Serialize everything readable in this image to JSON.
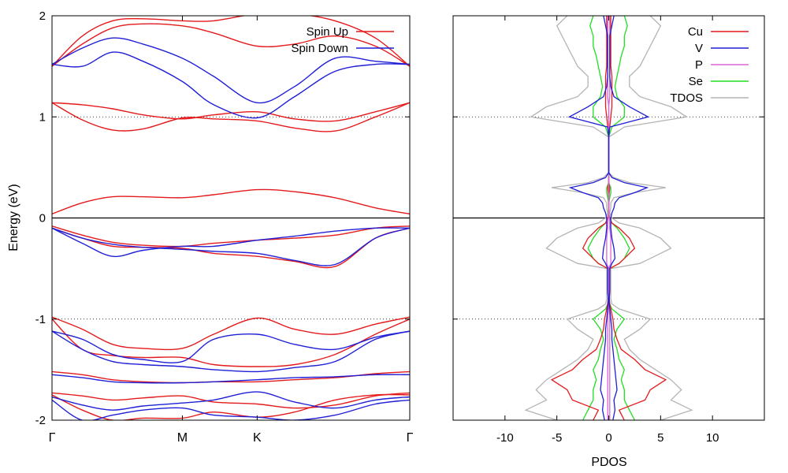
{
  "chart_data": [
    {
      "type": "line",
      "title": "",
      "ylabel": "Energy (eV)",
      "xlabel": "",
      "ylim": [
        -2,
        2
      ],
      "xlim": [
        0,
        3.54
      ],
      "yticks": [
        -2,
        -1,
        0,
        1,
        2
      ],
      "ytick_labels": [
        "-2",
        "-1",
        "0",
        "1",
        "2"
      ],
      "kpoints": [
        {
          "label": "Γ",
          "x": 0
        },
        {
          "label": "M",
          "x": 1.29
        },
        {
          "label": "K",
          "x": 2.03
        },
        {
          "label": "Γ",
          "x": 3.54
        }
      ],
      "reference_lines": [
        {
          "y": 0,
          "style": "solid"
        },
        {
          "y": 1,
          "style": "dotted"
        },
        {
          "y": -1,
          "style": "dotted"
        }
      ],
      "legend": {
        "placement": "top-right"
      },
      "series": [
        {
          "name": "Spin Up",
          "color": "#e41a1c",
          "bands": [
            {
              "x": [
                0,
                0.3,
                0.6,
                0.9,
                1.29,
                1.6,
                2.03,
                2.4,
                2.8,
                3.2,
                3.54
              ],
              "y": [
                1.5,
                1.72,
                1.88,
                1.92,
                1.9,
                1.83,
                1.7,
                1.72,
                1.8,
                1.7,
                1.5
              ]
            },
            {
              "x": [
                0,
                0.3,
                0.6,
                0.9,
                1.29,
                1.6,
                2.03,
                2.4,
                2.8,
                3.2,
                3.54
              ],
              "y": [
                1.5,
                1.8,
                1.95,
                1.97,
                1.95,
                1.95,
                2.02,
                2.02,
                1.95,
                1.78,
                1.5
              ]
            },
            {
              "x": [
                0,
                0.3,
                0.6,
                0.9,
                1.29,
                1.6,
                2.03,
                2.4,
                2.8,
                3.2,
                3.54
              ],
              "y": [
                1.14,
                1.12,
                1.08,
                1.02,
                0.98,
                1.02,
                1.05,
                0.98,
                0.96,
                1.05,
                1.14
              ]
            },
            {
              "x": [
                0,
                0.3,
                0.6,
                0.9,
                1.29,
                1.6,
                2.03,
                2.4,
                2.8,
                3.2,
                3.54
              ],
              "y": [
                1.14,
                0.97,
                0.87,
                0.88,
                0.99,
                0.98,
                0.96,
                0.89,
                0.86,
                1.0,
                1.14
              ]
            },
            {
              "x": [
                0,
                0.3,
                0.6,
                0.9,
                1.29,
                1.6,
                2.03,
                2.4,
                2.8,
                3.2,
                3.54
              ],
              "y": [
                0.04,
                0.15,
                0.21,
                0.21,
                0.2,
                0.23,
                0.28,
                0.26,
                0.2,
                0.1,
                0.04
              ]
            },
            {
              "x": [
                0,
                0.3,
                0.6,
                0.9,
                1.29,
                1.6,
                2.03,
                2.4,
                2.8,
                3.2,
                3.54
              ],
              "y": [
                -0.08,
                -0.17,
                -0.24,
                -0.27,
                -0.28,
                -0.25,
                -0.22,
                -0.2,
                -0.17,
                -0.1,
                -0.08
              ]
            },
            {
              "x": [
                0,
                0.3,
                0.6,
                0.9,
                1.29,
                1.6,
                2.03,
                2.4,
                2.8,
                3.2,
                3.54
              ],
              "y": [
                -0.1,
                -0.2,
                -0.28,
                -0.29,
                -0.3,
                -0.35,
                -0.38,
                -0.43,
                -0.48,
                -0.2,
                -0.1
              ]
            },
            {
              "x": [
                0,
                0.3,
                0.6,
                0.9,
                1.29,
                1.6,
                2.03,
                2.4,
                2.8,
                3.2,
                3.54
              ],
              "y": [
                -0.98,
                -1.1,
                -1.25,
                -1.29,
                -1.29,
                -1.15,
                -0.99,
                -1.1,
                -1.15,
                -1.05,
                -0.98
              ]
            },
            {
              "x": [
                0,
                0.3,
                0.6,
                0.9,
                1.29,
                1.6,
                2.03,
                2.4,
                2.8,
                3.2,
                3.54
              ],
              "y": [
                -1.0,
                -1.3,
                -1.36,
                -1.38,
                -1.38,
                -1.45,
                -1.47,
                -1.45,
                -1.35,
                -1.15,
                -1.0
              ]
            },
            {
              "x": [
                0,
                0.3,
                0.6,
                0.9,
                1.29,
                1.6,
                2.03,
                2.4,
                2.8,
                3.2,
                3.54
              ],
              "y": [
                -1.52,
                -1.55,
                -1.6,
                -1.62,
                -1.63,
                -1.62,
                -1.62,
                -1.6,
                -1.58,
                -1.54,
                -1.52
              ]
            },
            {
              "x": [
                0,
                0.3,
                0.6,
                0.9,
                1.29,
                1.6,
                2.03,
                2.4,
                2.8,
                3.2,
                3.54
              ],
              "y": [
                -1.73,
                -1.76,
                -1.8,
                -1.78,
                -1.76,
                -1.82,
                -1.84,
                -1.88,
                -1.85,
                -1.76,
                -1.73
              ]
            },
            {
              "x": [
                0,
                0.3,
                0.6,
                0.9,
                1.29,
                1.6,
                2.03,
                2.4,
                2.8,
                3.2,
                3.54
              ],
              "y": [
                -1.75,
                -1.9,
                -2.0,
                -1.98,
                -1.98,
                -1.92,
                -1.97,
                -1.92,
                -1.8,
                -1.75,
                -1.75
              ]
            }
          ]
        },
        {
          "name": "Spin Down",
          "color": "#1f1fd6",
          "bands": [
            {
              "x": [
                0,
                0.3,
                0.6,
                0.9,
                1.29,
                1.6,
                2.03,
                2.4,
                2.8,
                3.2,
                3.54
              ],
              "y": [
                1.52,
                1.68,
                1.78,
                1.72,
                1.58,
                1.4,
                1.14,
                1.3,
                1.58,
                1.55,
                1.52
              ]
            },
            {
              "x": [
                0,
                0.3,
                0.6,
                0.9,
                1.29,
                1.6,
                2.03,
                2.4,
                2.8,
                3.2,
                3.54
              ],
              "y": [
                1.52,
                1.5,
                1.64,
                1.55,
                1.35,
                1.12,
                0.99,
                1.2,
                1.45,
                1.52,
                1.52
              ]
            },
            {
              "x": [
                0,
                0.3,
                0.6,
                0.9,
                1.29,
                1.6,
                2.03,
                2.4,
                2.8,
                3.2,
                3.54
              ],
              "y": [
                -0.1,
                -0.25,
                -0.38,
                -0.32,
                -0.28,
                -0.28,
                -0.22,
                -0.18,
                -0.13,
                -0.1,
                -0.1
              ]
            },
            {
              "x": [
                0,
                0.3,
                0.6,
                0.9,
                1.29,
                1.6,
                2.03,
                2.4,
                2.8,
                3.2,
                3.54
              ],
              "y": [
                -0.1,
                -0.2,
                -0.26,
                -0.29,
                -0.31,
                -0.33,
                -0.35,
                -0.42,
                -0.46,
                -0.2,
                -0.1
              ]
            },
            {
              "x": [
                0,
                0.3,
                0.6,
                0.9,
                1.29,
                1.6,
                2.03,
                2.4,
                2.8,
                3.2,
                3.54
              ],
              "y": [
                -1.12,
                -1.2,
                -1.35,
                -1.4,
                -1.42,
                -1.2,
                -1.15,
                -1.25,
                -1.3,
                -1.18,
                -1.12
              ]
            },
            {
              "x": [
                0,
                0.3,
                0.6,
                0.9,
                1.29,
                1.6,
                2.03,
                2.4,
                2.8,
                3.2,
                3.54
              ],
              "y": [
                -1.12,
                -1.3,
                -1.42,
                -1.45,
                -1.47,
                -1.5,
                -1.52,
                -1.48,
                -1.42,
                -1.2,
                -1.12
              ]
            },
            {
              "x": [
                0,
                0.3,
                0.6,
                0.9,
                1.29,
                1.6,
                2.03,
                2.4,
                2.8,
                3.2,
                3.54
              ],
              "y": [
                -1.55,
                -1.58,
                -1.62,
                -1.63,
                -1.63,
                -1.62,
                -1.6,
                -1.58,
                -1.57,
                -1.55,
                -1.55
              ]
            },
            {
              "x": [
                0,
                0.3,
                0.6,
                0.9,
                1.29,
                1.6,
                2.03,
                2.4,
                2.8,
                3.2,
                3.54
              ],
              "y": [
                -1.77,
                -1.85,
                -1.9,
                -1.86,
                -1.83,
                -1.8,
                -1.72,
                -1.82,
                -1.88,
                -1.8,
                -1.77
              ]
            },
            {
              "x": [
                0,
                0.3,
                0.6,
                0.9,
                1.29,
                1.6,
                2.03,
                2.4,
                2.8,
                3.2,
                3.54
              ],
              "y": [
                -1.8,
                -2.0,
                -1.95,
                -1.9,
                -1.88,
                -1.95,
                -1.97,
                -2.0,
                -1.95,
                -1.84,
                -1.8
              ]
            }
          ]
        }
      ]
    },
    {
      "type": "line",
      "title": "",
      "xlabel": "PDOS",
      "ylabel": "",
      "xlim": [
        -15,
        15
      ],
      "ylim": [
        -2,
        2
      ],
      "xticks": [
        -10,
        -5,
        0,
        5,
        10
      ],
      "xtick_labels": [
        "-10",
        "-5",
        "0",
        "5",
        "10"
      ],
      "yticks": [
        -2,
        -1,
        0,
        1,
        2
      ],
      "reference_lines": [
        {
          "y": 0,
          "style": "solid"
        },
        {
          "y": 1,
          "style": "dotted"
        },
        {
          "y": -1,
          "style": "dotted"
        }
      ],
      "legend": {
        "placement": "top-right"
      },
      "energy": [
        -2.0,
        -1.9,
        -1.8,
        -1.7,
        -1.6,
        -1.5,
        -1.4,
        -1.3,
        -1.2,
        -1.1,
        -1.0,
        -0.9,
        -0.85,
        -0.8,
        -0.7,
        -0.6,
        -0.5,
        -0.45,
        -0.4,
        -0.3,
        -0.2,
        -0.1,
        -0.05,
        0.0,
        0.05,
        0.1,
        0.15,
        0.2,
        0.25,
        0.3,
        0.35,
        0.4,
        0.45,
        0.5,
        0.6,
        0.7,
        0.8,
        0.9,
        1.0,
        1.1,
        1.2,
        1.3,
        1.4,
        1.5,
        1.6,
        1.7,
        1.8,
        1.9,
        2.0
      ],
      "series": [
        {
          "name": "Cu",
          "color": "#e41a1c",
          "side": "both",
          "values": [
            1.5,
            1.0,
            3.5,
            4.0,
            5.5,
            3.5,
            2.5,
            1.2,
            0.8,
            0.5,
            0.4,
            0.2,
            0.1,
            0.05,
            0.1,
            0.1,
            0.1,
            1.0,
            1.5,
            2.5,
            2.0,
            1.0,
            0.3,
            0.1,
            0,
            0,
            0,
            0,
            0.05,
            0.1,
            0,
            0,
            0,
            0,
            0,
            0,
            0,
            0.1,
            0.2,
            0.3,
            0.3,
            0.3,
            0.3,
            0.2,
            0.2,
            0.2,
            0.2,
            0.2,
            0.2
          ]
        },
        {
          "name": "V",
          "color": "#1f1fd6",
          "side": "both",
          "values": [
            0.4,
            0.6,
            0.5,
            0.8,
            0.7,
            0.6,
            0.5,
            0.4,
            0.3,
            0.3,
            0.2,
            0.1,
            0.05,
            0.05,
            0.1,
            0.1,
            0.1,
            0.3,
            0.6,
            0.5,
            0.3,
            0.2,
            0.2,
            0.2,
            0.3,
            0.5,
            0.6,
            1.0,
            2.5,
            3.7,
            1.5,
            0.3,
            0,
            0,
            0,
            0,
            0,
            0.1,
            3.8,
            2.0,
            0.5,
            0.2,
            0.1,
            0.1,
            0.1,
            0.1,
            0.1,
            0.3,
            0.5
          ]
        },
        {
          "name": "P",
          "color": "#d966d9",
          "side": "both",
          "values": [
            0.1,
            0.1,
            0.1,
            0.1,
            0.1,
            0.1,
            0.1,
            0.1,
            0.1,
            0.1,
            0.1,
            0.05,
            0,
            0,
            0,
            0,
            0,
            0.2,
            0.2,
            0.2,
            0.2,
            0.1,
            0.1,
            0.05,
            0,
            0,
            0,
            0,
            0,
            0,
            0,
            0,
            0,
            0,
            0,
            0,
            0,
            0,
            0,
            0,
            0.1,
            0.1,
            0.1,
            0.1,
            0.1,
            0.1,
            0.1,
            0.1,
            0.1
          ]
        },
        {
          "name": "Se",
          "color": "#22dd22",
          "side": "both",
          "values": [
            2.5,
            2.0,
            1.5,
            1.5,
            1.2,
            1.5,
            1.0,
            0.8,
            0.5,
            0.8,
            1.5,
            0.3,
            0.1,
            0.05,
            0.1,
            0.1,
            0.1,
            1.0,
            1.5,
            2.0,
            1.5,
            0.8,
            0.3,
            0.1,
            0,
            0,
            0,
            0.1,
            0.2,
            0.2,
            0,
            0,
            0,
            0,
            0,
            0,
            0,
            0.3,
            1.5,
            1.5,
            0.8,
            0.6,
            0.8,
            1.0,
            1.2,
            1.5,
            1.5,
            1.8,
            1.5
          ]
        },
        {
          "name": "TDOS",
          "color": "#b4b4b4",
          "side": "both",
          "values": [
            5.0,
            8.0,
            6.0,
            7.0,
            6.0,
            4.5,
            3.0,
            2.0,
            1.5,
            3.0,
            4.0,
            1.0,
            0.3,
            0.2,
            0.2,
            0.2,
            0.2,
            3.0,
            4.0,
            6.0,
            5.0,
            3.0,
            1.0,
            0.3,
            0.1,
            0.2,
            0.2,
            0.5,
            2.5,
            5.5,
            2.0,
            0.5,
            0,
            0,
            0,
            0,
            0,
            1.5,
            7.5,
            6.0,
            3.0,
            2.0,
            2.0,
            3.0,
            3.5,
            4.0,
            4.5,
            5.0,
            4.0
          ]
        }
      ]
    }
  ]
}
